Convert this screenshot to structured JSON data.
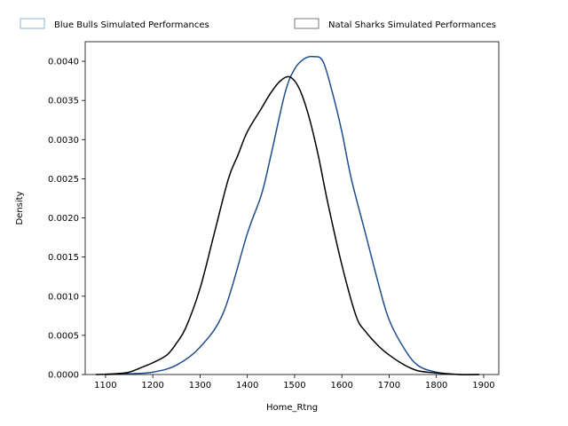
{
  "chart_data": {
    "type": "line",
    "title": "",
    "xlabel": "Home_Rtng",
    "ylabel": "Density",
    "xlim": [
      1057,
      1932
    ],
    "ylim": [
      0,
      0.00425
    ],
    "x_ticks": [
      "1100",
      "1200",
      "1300",
      "1400",
      "1500",
      "1600",
      "1700",
      "1800",
      "1900"
    ],
    "x_tick_values": [
      1100,
      1200,
      1300,
      1400,
      1500,
      1600,
      1700,
      1800,
      1900
    ],
    "y_ticks": [
      "0.0000",
      "0.0005",
      "0.0010",
      "0.0015",
      "0.0020",
      "0.0025",
      "0.0030",
      "0.0035",
      "0.0040"
    ],
    "y_tick_values": [
      0,
      0.0005,
      0.001,
      0.0015,
      0.002,
      0.0025,
      0.003,
      0.0035,
      0.004
    ],
    "grid": false,
    "legend_position": "top",
    "series": [
      {
        "name": "Blue Bulls Simulated Performances",
        "color": "#1f4e8c",
        "legend_edge_color": "#8fb0cc",
        "x": [
          1100,
          1150,
          1200,
          1250,
          1300,
          1350,
          1400,
          1430,
          1450,
          1480,
          1500,
          1520,
          1540,
          1560,
          1580,
          1600,
          1620,
          1650,
          1680,
          1700,
          1730,
          1760,
          1800,
          1850,
          1890
        ],
        "y": [
          0.0,
          1e-05,
          3e-05,
          0.00012,
          0.00035,
          0.0008,
          0.0018,
          0.0023,
          0.0028,
          0.0036,
          0.0039,
          0.00403,
          0.00406,
          0.004,
          0.0036,
          0.0031,
          0.0025,
          0.0018,
          0.0011,
          0.0007,
          0.00035,
          0.00012,
          3e-05,
          0.0,
          0.0
        ]
      },
      {
        "name": "Natal Sharks Simulated Performances",
        "color": "#000000",
        "legend_edge_color": "#7a7a7a",
        "x": [
          1080,
          1120,
          1150,
          1180,
          1200,
          1230,
          1250,
          1270,
          1300,
          1330,
          1360,
          1380,
          1400,
          1430,
          1450,
          1470,
          1490,
          1510,
          1530,
          1550,
          1570,
          1600,
          1630,
          1650,
          1680,
          1700,
          1730,
          1760,
          1800,
          1850,
          1890
        ],
        "y": [
          0.0,
          1e-05,
          3e-05,
          0.0001,
          0.00015,
          0.00025,
          0.0004,
          0.0006,
          0.0011,
          0.0018,
          0.0025,
          0.0028,
          0.0031,
          0.0034,
          0.0036,
          0.00375,
          0.0038,
          0.00365,
          0.0033,
          0.0028,
          0.0022,
          0.0014,
          0.00075,
          0.00055,
          0.00035,
          0.00025,
          0.00013,
          5e-05,
          2e-05,
          0.0,
          0.0
        ]
      }
    ]
  }
}
